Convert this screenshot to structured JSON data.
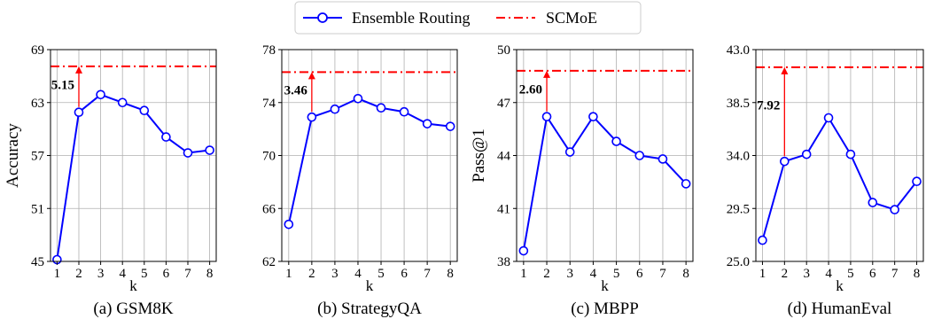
{
  "legend": {
    "items": [
      {
        "label": "Ensemble Routing",
        "color": "#0000ff",
        "style": "line-marker"
      },
      {
        "label": "SCMoE",
        "color": "#ff0000",
        "style": "dash-dot"
      }
    ],
    "placement": "top-center"
  },
  "chart_data": [
    {
      "type": "line",
      "caption": "(a) GSM8K",
      "xlabel": "k",
      "ylabel": "Accuracy",
      "x": [
        1,
        2,
        3,
        4,
        5,
        6,
        7,
        8
      ],
      "xticks": [
        "1",
        "2",
        "3",
        "4",
        "5",
        "6",
        "7",
        "8"
      ],
      "ylim": [
        45,
        69
      ],
      "yticks": [
        "45",
        "51",
        "57",
        "63",
        "69"
      ],
      "series": [
        {
          "name": "Ensemble Routing",
          "values": [
            45.2,
            61.9,
            63.9,
            63.0,
            62.1,
            59.1,
            57.3,
            57.6
          ]
        }
      ],
      "reference": {
        "name": "SCMoE",
        "value": 67.1
      },
      "annotation": {
        "label": "5.15",
        "x": 2
      }
    },
    {
      "type": "line",
      "caption": "(b) StrategyQA",
      "xlabel": "k",
      "ylabel": "",
      "x": [
        1,
        2,
        3,
        4,
        5,
        6,
        7,
        8
      ],
      "xticks": [
        "1",
        "2",
        "3",
        "4",
        "5",
        "6",
        "7",
        "8"
      ],
      "ylim": [
        62,
        78
      ],
      "yticks": [
        "62",
        "66",
        "70",
        "74",
        "78"
      ],
      "series": [
        {
          "name": "Ensemble Routing",
          "values": [
            64.8,
            72.9,
            73.5,
            74.3,
            73.6,
            73.3,
            72.4,
            72.2
          ]
        }
      ],
      "reference": {
        "name": "SCMoE",
        "value": 76.3
      },
      "annotation": {
        "label": "3.46",
        "x": 2
      }
    },
    {
      "type": "line",
      "caption": "(c) MBPP",
      "xlabel": "k",
      "ylabel": "Pass@1",
      "x": [
        1,
        2,
        3,
        4,
        5,
        6,
        7,
        8
      ],
      "xticks": [
        "1",
        "2",
        "3",
        "4",
        "5",
        "6",
        "7",
        "8"
      ],
      "ylim": [
        38,
        50
      ],
      "yticks": [
        "38",
        "41",
        "44",
        "47",
        "50"
      ],
      "series": [
        {
          "name": "Ensemble Routing",
          "values": [
            38.6,
            46.2,
            44.2,
            46.2,
            44.8,
            44.0,
            43.8,
            42.4
          ]
        }
      ],
      "reference": {
        "name": "SCMoE",
        "value": 48.8
      },
      "annotation": {
        "label": "2.60",
        "x": 2
      }
    },
    {
      "type": "line",
      "caption": "(d) HumanEval",
      "xlabel": "k",
      "ylabel": "",
      "x": [
        1,
        2,
        3,
        4,
        5,
        6,
        7,
        8
      ],
      "xticks": [
        "1",
        "2",
        "3",
        "4",
        "5",
        "6",
        "7",
        "8"
      ],
      "ylim": [
        25.0,
        43.0
      ],
      "yticks": [
        "25.0",
        "29.5",
        "34.0",
        "38.5",
        "43.0"
      ],
      "series": [
        {
          "name": "Ensemble Routing",
          "values": [
            26.8,
            33.5,
            34.1,
            37.2,
            34.1,
            30.0,
            29.4,
            31.8
          ]
        }
      ],
      "reference": {
        "name": "SCMoE",
        "value": 41.5
      },
      "annotation": {
        "label": "7.92",
        "x": 2
      }
    }
  ]
}
